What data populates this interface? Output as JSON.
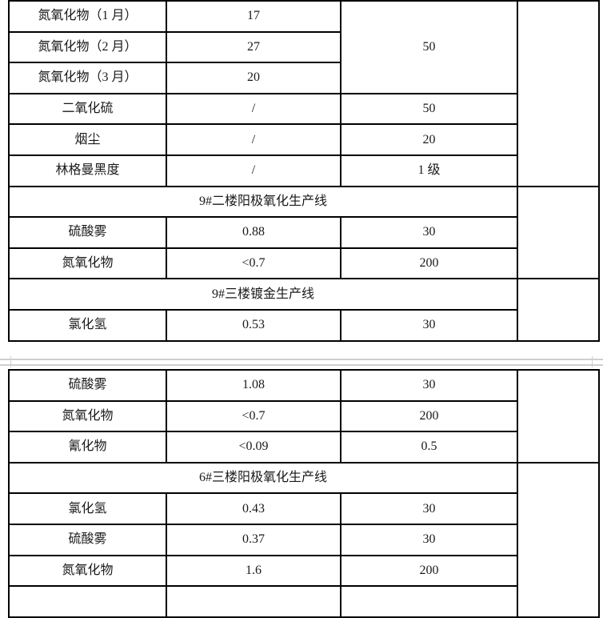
{
  "segment1": {
    "rows": [
      [
        "氮氧化物（1 月）",
        "17"
      ],
      [
        "氮氧化物（2 月）",
        "27"
      ],
      [
        "氮氧化物（3 月）",
        "20"
      ],
      [
        "二氧化硫",
        "/",
        "50"
      ],
      [
        "烟尘",
        "/",
        "20"
      ],
      [
        "林格曼黑度",
        "/",
        "1 级"
      ]
    ],
    "merged_limit": "50",
    "section_a": "9#二楼阳极氧化生产线",
    "rows_a": [
      [
        "硫酸雾",
        "0.88",
        "30"
      ],
      [
        "氮氧化物",
        "<0.7",
        "200"
      ]
    ],
    "section_b": "9#三楼镀金生产线",
    "rows_b": [
      [
        "氯化氢",
        "0.53",
        "30"
      ]
    ]
  },
  "segment2": {
    "rows": [
      [
        "硫酸雾",
        "1.08",
        "30"
      ],
      [
        "氮氧化物",
        "<0.7",
        "200"
      ],
      [
        "氰化物",
        "<0.09",
        "0.5"
      ]
    ],
    "section_c": "6#三楼阳极氧化生产线",
    "rows_c": [
      [
        "氯化氢",
        "0.43",
        "30"
      ],
      [
        "硫酸雾",
        "0.37",
        "30"
      ],
      [
        "氮氧化物",
        "1.6",
        "200"
      ]
    ]
  }
}
